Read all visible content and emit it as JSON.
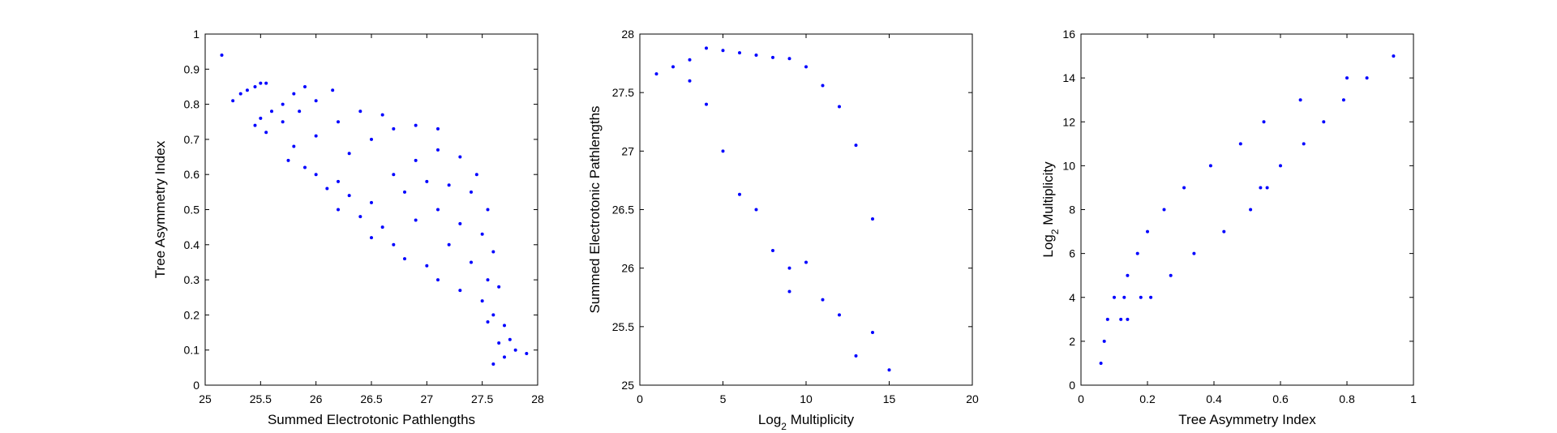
{
  "colors": {
    "series": "#0000ff",
    "axes": "#000000",
    "background": "#ffffff"
  },
  "chart_data": [
    {
      "type": "scatter",
      "xlabel": "Summed Electrotonic Pathlengths",
      "ylabel": "Tree Asymmetry Index",
      "xlim": [
        25,
        28
      ],
      "ylim": [
        0,
        1
      ],
      "xticks": [
        "25",
        "25.5",
        "26",
        "26.5",
        "27",
        "27.5",
        "28"
      ],
      "yticks": [
        "0",
        "0.1",
        "0.2",
        "0.3",
        "0.4",
        "0.5",
        "0.6",
        "0.7",
        "0.8",
        "0.9",
        "1"
      ],
      "grid": false,
      "series": [
        {
          "points": [
            [
              25.15,
              0.94
            ],
            [
              25.25,
              0.81
            ],
            [
              25.32,
              0.83
            ],
            [
              25.38,
              0.84
            ],
            [
              25.45,
              0.85
            ],
            [
              25.5,
              0.86
            ],
            [
              25.55,
              0.86
            ],
            [
              25.45,
              0.74
            ],
            [
              25.5,
              0.76
            ],
            [
              25.6,
              0.78
            ],
            [
              25.7,
              0.8
            ],
            [
              25.8,
              0.83
            ],
            [
              25.9,
              0.85
            ],
            [
              25.55,
              0.72
            ],
            [
              25.7,
              0.75
            ],
            [
              25.85,
              0.78
            ],
            [
              26.0,
              0.81
            ],
            [
              26.15,
              0.84
            ],
            [
              25.8,
              0.68
            ],
            [
              26.0,
              0.71
            ],
            [
              26.2,
              0.75
            ],
            [
              26.4,
              0.78
            ],
            [
              26.6,
              0.77
            ],
            [
              25.75,
              0.64
            ],
            [
              25.9,
              0.62
            ],
            [
              26.0,
              0.6
            ],
            [
              26.2,
              0.58
            ],
            [
              26.3,
              0.66
            ],
            [
              26.5,
              0.7
            ],
            [
              26.7,
              0.73
            ],
            [
              26.9,
              0.74
            ],
            [
              27.1,
              0.73
            ],
            [
              26.1,
              0.56
            ],
            [
              26.3,
              0.54
            ],
            [
              26.5,
              0.52
            ],
            [
              26.7,
              0.6
            ],
            [
              26.9,
              0.64
            ],
            [
              27.1,
              0.67
            ],
            [
              27.3,
              0.65
            ],
            [
              27.45,
              0.6
            ],
            [
              26.2,
              0.5
            ],
            [
              26.4,
              0.48
            ],
            [
              26.6,
              0.45
            ],
            [
              26.8,
              0.55
            ],
            [
              27.0,
              0.58
            ],
            [
              27.2,
              0.57
            ],
            [
              27.4,
              0.55
            ],
            [
              27.55,
              0.5
            ],
            [
              26.5,
              0.42
            ],
            [
              26.7,
              0.4
            ],
            [
              26.9,
              0.47
            ],
            [
              27.1,
              0.5
            ],
            [
              27.3,
              0.46
            ],
            [
              27.5,
              0.43
            ],
            [
              27.6,
              0.38
            ],
            [
              26.8,
              0.36
            ],
            [
              27.0,
              0.34
            ],
            [
              27.2,
              0.4
            ],
            [
              27.4,
              0.35
            ],
            [
              27.55,
              0.3
            ],
            [
              27.65,
              0.28
            ],
            [
              27.1,
              0.3
            ],
            [
              27.3,
              0.27
            ],
            [
              27.5,
              0.24
            ],
            [
              27.6,
              0.2
            ],
            [
              27.7,
              0.17
            ],
            [
              27.75,
              0.13
            ],
            [
              27.55,
              0.18
            ],
            [
              27.65,
              0.12
            ],
            [
              27.7,
              0.08
            ],
            [
              27.8,
              0.1
            ],
            [
              27.9,
              0.09
            ],
            [
              27.6,
              0.06
            ]
          ]
        }
      ]
    },
    {
      "type": "scatter",
      "xlabel": "Log2 Multiplicity",
      "xlabel_parts": [
        "Log",
        "2",
        " Multiplicity"
      ],
      "ylabel": "Summed Electrotonic Pathlengths",
      "xlim": [
        0,
        20
      ],
      "ylim": [
        25,
        28
      ],
      "xticks": [
        "0",
        "5",
        "10",
        "15",
        "20"
      ],
      "yticks": [
        "25",
        "25.5",
        "26",
        "26.5",
        "27",
        "27.5",
        "28"
      ],
      "grid": false,
      "series": [
        {
          "points": [
            [
              1,
              27.66
            ],
            [
              2,
              27.72
            ],
            [
              3,
              27.78
            ],
            [
              3,
              27.6
            ],
            [
              4,
              27.88
            ],
            [
              4,
              27.4
            ],
            [
              5,
              27.86
            ],
            [
              5,
              27.0
            ],
            [
              6,
              27.84
            ],
            [
              6,
              26.63
            ],
            [
              7,
              27.82
            ],
            [
              7,
              26.5
            ],
            [
              8,
              27.8
            ],
            [
              8,
              26.15
            ],
            [
              9,
              27.79
            ],
            [
              9,
              26.0
            ],
            [
              9,
              25.8
            ],
            [
              10,
              27.72
            ],
            [
              10,
              26.05
            ],
            [
              11,
              27.56
            ],
            [
              11,
              25.73
            ],
            [
              12,
              27.38
            ],
            [
              12,
              25.6
            ],
            [
              13,
              27.05
            ],
            [
              13,
              25.25
            ],
            [
              14,
              26.42
            ],
            [
              14,
              25.45
            ],
            [
              15,
              25.13
            ]
          ]
        }
      ]
    },
    {
      "type": "scatter",
      "xlabel": "Tree Asymmetry Index",
      "ylabel": "Log2 Multiplicity",
      "ylabel_parts": [
        "Log",
        "2",
        " Multiplicity"
      ],
      "xlim": [
        0,
        1
      ],
      "ylim": [
        0,
        16
      ],
      "xticks": [
        "0",
        "0.2",
        "0.4",
        "0.6",
        "0.8",
        "1"
      ],
      "yticks": [
        "0",
        "2",
        "4",
        "6",
        "8",
        "10",
        "12",
        "14",
        "16"
      ],
      "grid": false,
      "series": [
        {
          "points": [
            [
              0.06,
              1
            ],
            [
              0.07,
              2
            ],
            [
              0.08,
              3
            ],
            [
              0.12,
              3
            ],
            [
              0.14,
              3
            ],
            [
              0.1,
              4
            ],
            [
              0.13,
              4
            ],
            [
              0.18,
              4
            ],
            [
              0.21,
              4
            ],
            [
              0.14,
              5
            ],
            [
              0.27,
              5
            ],
            [
              0.17,
              6
            ],
            [
              0.34,
              6
            ],
            [
              0.2,
              7
            ],
            [
              0.43,
              7
            ],
            [
              0.25,
              8
            ],
            [
              0.51,
              8
            ],
            [
              0.31,
              9
            ],
            [
              0.54,
              9
            ],
            [
              0.56,
              9
            ],
            [
              0.39,
              10
            ],
            [
              0.6,
              10
            ],
            [
              0.48,
              11
            ],
            [
              0.67,
              11
            ],
            [
              0.55,
              12
            ],
            [
              0.73,
              12
            ],
            [
              0.66,
              13
            ],
            [
              0.79,
              13
            ],
            [
              0.8,
              14
            ],
            [
              0.86,
              14
            ],
            [
              0.94,
              15
            ]
          ]
        }
      ]
    }
  ]
}
